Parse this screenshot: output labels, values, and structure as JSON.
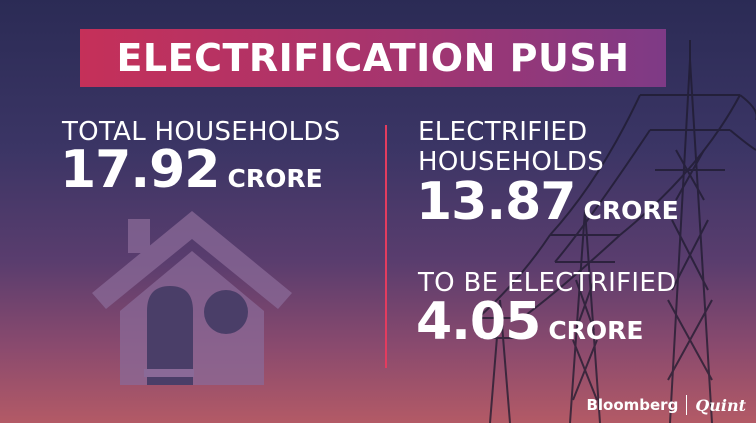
{
  "title": "ELECTRIFICATION PUSH",
  "total": {
    "label": "TOTAL HOUSEHOLDS",
    "value": "17.92",
    "unit": "CRORE"
  },
  "electrified": {
    "label_line1": "ELECTRIFIED",
    "label_line2": "HOUSEHOLDS",
    "value": "13.87",
    "unit": "CRORE"
  },
  "pending": {
    "label": "TO BE ELECTRIFIED",
    "value": "4.05",
    "unit": "CRORE"
  },
  "branding": {
    "bloomberg": "Bloomberg",
    "quint": "Quint"
  },
  "colors": {
    "title_start": "#c53059",
    "title_end": "#7e3a86",
    "divider": "#e33c5f",
    "house": "#8a6a98"
  },
  "icons": {
    "house": "house-icon",
    "background": "power-tower-icon"
  }
}
